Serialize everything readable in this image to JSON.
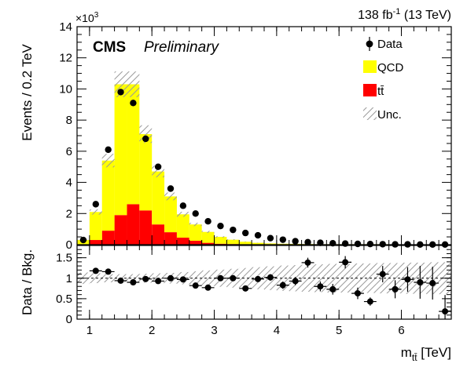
{
  "chart_data": [
    {
      "type": "bar",
      "subtype": "stacked-histogram-with-data-points",
      "bin_width": 0.2,
      "xlim": [
        0.8,
        6.8
      ],
      "ylim": [
        0,
        14
      ],
      "y_multiplier": "×10³",
      "ylabel": "Events / 0.2 TeV",
      "yticks": [
        0,
        2,
        4,
        6,
        8,
        10,
        12,
        14
      ],
      "ytick_labels": [
        "0",
        "2",
        "4",
        "6",
        "8",
        "10",
        "12",
        "14"
      ],
      "grid": false,
      "legend_position": "top-right",
      "x_edges": [
        0.8,
        1.0,
        1.2,
        1.4,
        1.6,
        1.8,
        2.0,
        2.2,
        2.4,
        2.6,
        2.8,
        3.0,
        3.2,
        3.4,
        3.6,
        3.8,
        4.0,
        4.2,
        4.4,
        4.6,
        4.8,
        5.0,
        5.2,
        5.4,
        5.6,
        5.8,
        6.0,
        6.2,
        6.4,
        6.6,
        6.8
      ],
      "series": [
        {
          "name": "tt̄",
          "color": "#ff0000",
          "values": [
            0.0,
            0.3,
            0.9,
            1.9,
            2.6,
            2.2,
            1.3,
            0.8,
            0.45,
            0.25,
            0.12,
            0.06,
            0.04,
            0.02,
            0.01,
            0.01,
            0.01,
            0.01,
            0.01,
            0.01,
            0.01,
            0.01,
            0.01,
            0.01,
            0.01,
            0.01,
            0.01,
            0.01,
            0.01,
            0.01
          ]
        },
        {
          "name": "QCD",
          "color": "#ffff00",
          "values": [
            0.3,
            1.8,
            4.5,
            8.4,
            7.7,
            4.9,
            3.4,
            2.3,
            1.5,
            1.05,
            0.7,
            0.44,
            0.28,
            0.17,
            0.11,
            0.07,
            0.05,
            0.04,
            0.03,
            0.02,
            0.02,
            0.02,
            0.02,
            0.02,
            0.02,
            0.01,
            0.01,
            0.01,
            0.01,
            0.01
          ]
        }
      ],
      "uncertainty": {
        "name": "Unc.",
        "rel": 0.08
      },
      "data": {
        "name": "Data",
        "x": [
          0.9,
          1.1,
          1.3,
          1.5,
          1.7,
          1.9,
          2.1,
          2.3,
          2.5,
          2.7,
          2.9,
          3.1,
          3.3,
          3.5,
          3.7,
          3.9,
          4.1,
          4.3,
          4.5,
          4.7,
          4.9,
          5.1,
          5.3,
          5.5,
          5.7,
          5.9,
          6.1,
          6.3,
          6.5,
          6.7
        ],
        "y": [
          0.3,
          2.6,
          6.1,
          9.8,
          9.1,
          6.8,
          5.0,
          3.6,
          2.5,
          2.0,
          1.5,
          1.2,
          0.95,
          0.75,
          0.6,
          0.42,
          0.32,
          0.22,
          0.16,
          0.12,
          0.09,
          0.07,
          0.05,
          0.04,
          0.03,
          0.02,
          0.02,
          0.01,
          0.01,
          0.01
        ]
      },
      "title": {
        "cms": "CMS",
        "preliminary": "Preliminary",
        "lumi": "138 fb",
        "lumi_sup": "-1",
        "energy": " (13 TeV)"
      }
    },
    {
      "type": "scatter",
      "subtype": "ratio-panel",
      "ylabel": "Data / Bkg.",
      "ylim": [
        0,
        1.8
      ],
      "yticks": [
        0,
        0.5,
        1,
        1.5
      ],
      "ytick_labels": [
        "0",
        "0.5",
        "1",
        "1.5"
      ],
      "xlim": [
        0.8,
        6.8
      ],
      "xticks": [
        1,
        2,
        3,
        4,
        5,
        6
      ],
      "xtick_labels": [
        "1",
        "2",
        "3",
        "4",
        "5",
        "6"
      ],
      "xlabel": "m",
      "xlabel_sub": "tt̄",
      "xlabel_unit": " [TeV]",
      "reference_line": 1,
      "points": {
        "x": [
          1.1,
          1.3,
          1.5,
          1.7,
          1.9,
          2.1,
          2.3,
          2.5,
          2.7,
          2.9,
          3.1,
          3.3,
          3.5,
          3.7,
          3.9,
          4.1,
          4.3,
          4.5,
          4.7,
          4.9,
          5.1,
          5.3,
          5.5,
          5.7,
          5.9,
          6.1,
          6.3,
          6.5,
          6.7
        ],
        "y": [
          1.18,
          1.16,
          0.94,
          0.9,
          0.98,
          0.93,
          1.0,
          0.97,
          0.82,
          0.77,
          1.0,
          1.0,
          0.75,
          0.98,
          1.02,
          0.83,
          0.93,
          1.38,
          0.8,
          0.73,
          1.39,
          0.63,
          0.43,
          1.1,
          0.73,
          0.97,
          0.9,
          0.88,
          0.19
        ],
        "err": [
          0.04,
          0.03,
          0.02,
          0.02,
          0.03,
          0.03,
          0.03,
          0.04,
          0.05,
          0.05,
          0.05,
          0.06,
          0.06,
          0.07,
          0.08,
          0.09,
          0.1,
          0.12,
          0.12,
          0.13,
          0.15,
          0.14,
          0.1,
          0.2,
          0.22,
          0.3,
          0.4,
          0.4,
          0.4
        ]
      },
      "uncertainty_band": [
        0.14,
        0.12,
        0.1,
        0.1,
        0.1,
        0.11,
        0.12,
        0.13,
        0.15,
        0.17,
        0.19,
        0.21,
        0.23,
        0.25,
        0.27,
        0.29,
        0.31,
        0.32,
        0.33,
        0.34,
        0.35,
        0.35,
        0.36,
        0.36,
        0.37,
        0.37,
        0.38,
        0.38,
        0.39,
        0.39
      ]
    }
  ]
}
